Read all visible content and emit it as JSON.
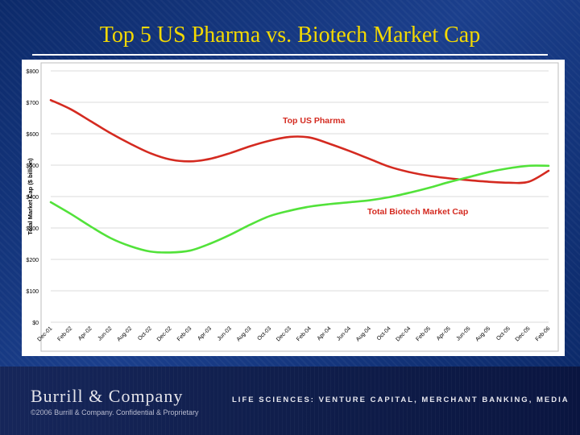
{
  "slide": {
    "title": "Top 5 US Pharma vs. Biotech Market Cap",
    "logo": "Burrill & Company",
    "copyright": "©2006 Burrill & Company. Confidential & Proprietary",
    "tagline": "LIFE SCIENCES: VENTURE CAPITAL, MERCHANT BANKING, MEDIA"
  },
  "colors": {
    "pharma": "#d42a20",
    "biotech": "#52e23a",
    "title": "#f4d900"
  },
  "chart_data": {
    "type": "line",
    "title": "",
    "xlabel": "",
    "ylabel": "Total Market Cap ($ billion)",
    "ylim": [
      0,
      800
    ],
    "ytick_labels": [
      "$0",
      "$100",
      "$200",
      "$300",
      "$400",
      "$500",
      "$600",
      "$700",
      "$800"
    ],
    "grid": true,
    "categories": [
      "Dec-01",
      "Feb-02",
      "Apr-02",
      "Jun-02",
      "Aug-02",
      "Oct-02",
      "Dec-02",
      "Feb-03",
      "Apr-03",
      "Jun-03",
      "Aug-03",
      "Oct-03",
      "Dec-03",
      "Feb-04",
      "Apr-04",
      "Jun-04",
      "Aug-04",
      "Oct-04",
      "Dec-04",
      "Feb-05",
      "Apr-05",
      "Jun-05",
      "Aug-05",
      "Oct-05",
      "Dec-05",
      "Feb-06"
    ],
    "series": [
      {
        "name": "Top US Pharma",
        "values": [
          707,
          678,
          640,
          602,
          568,
          538,
          518,
          512,
          520,
          538,
          560,
          578,
          590,
          588,
          568,
          545,
          520,
          495,
          478,
          466,
          458,
          452,
          447,
          444,
          447,
          482
        ]
      },
      {
        "name": "Total Biotech Market Cap",
        "values": [
          382,
          345,
          305,
          268,
          242,
          225,
          222,
          228,
          250,
          278,
          310,
          338,
          355,
          368,
          376,
          382,
          388,
          398,
          412,
          428,
          446,
          462,
          478,
          490,
          498,
          498
        ]
      }
    ]
  }
}
